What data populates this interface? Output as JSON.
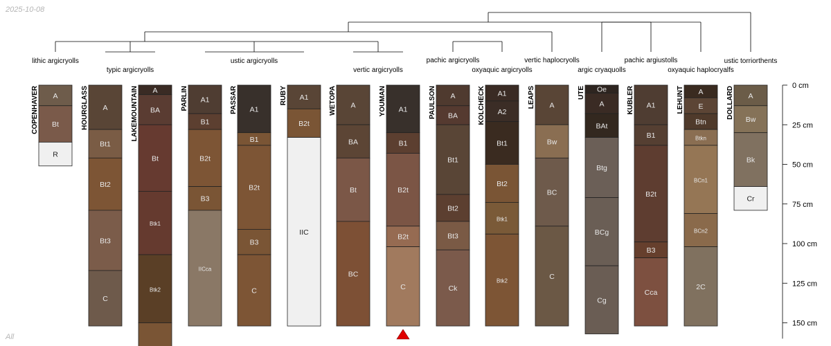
{
  "date": "2025-10-08",
  "footer": "All",
  "depth_axis": {
    "unit": "cm",
    "max": 160,
    "ticks": [
      {
        "value": 0,
        "label": "0 cm"
      },
      {
        "value": 25,
        "label": "25 cm"
      },
      {
        "value": 50,
        "label": "50 cm"
      },
      {
        "value": 75,
        "label": "75 cm"
      },
      {
        "value": 100,
        "label": "100 cm"
      },
      {
        "value": 125,
        "label": "125 cm"
      },
      {
        "value": 150,
        "label": "150 cm"
      }
    ]
  },
  "taxa": [
    {
      "label": "lithic argicryolls"
    },
    {
      "label": "typic argicryolls"
    },
    {
      "label": "ustic argicryolls"
    },
    {
      "label": "vertic argicryolls"
    },
    {
      "label": "pachic argicryolls"
    },
    {
      "label": "oxyaquic argicryolls"
    },
    {
      "label": "vertic haplocryolls"
    },
    {
      "label": "argic cryaquolls"
    },
    {
      "label": "pachic argiustolls"
    },
    {
      "label": "oxyaquic haplocryalfs"
    },
    {
      "label": "ustic torriorthents"
    }
  ],
  "profiles": [
    {
      "name": "COPENHAVER",
      "horizons": [
        {
          "name": "A",
          "top": 0,
          "bottom": 13,
          "color": "#6e5c4b"
        },
        {
          "name": "Bt",
          "top": 13,
          "bottom": 36,
          "color": "#7a5a4a"
        },
        {
          "name": "R",
          "top": 36,
          "bottom": 51,
          "color": "#f0f0f0"
        }
      ]
    },
    {
      "name": "HOURGLASS",
      "horizons": [
        {
          "name": "A",
          "top": 0,
          "bottom": 28,
          "color": "#594536"
        },
        {
          "name": "Bt1",
          "top": 28,
          "bottom": 46,
          "color": "#7a5c45"
        },
        {
          "name": "Bt2",
          "top": 46,
          "bottom": 79,
          "color": "#7d5535"
        },
        {
          "name": "Bt3",
          "top": 79,
          "bottom": 117,
          "color": "#7b5c4a"
        },
        {
          "name": "C",
          "top": 117,
          "bottom": 152,
          "color": "#6e5a4b"
        }
      ]
    },
    {
      "name": "LAKEMOUNTAIN",
      "horizons": [
        {
          "name": "A",
          "top": 0,
          "bottom": 6,
          "color": "#3a2b24"
        },
        {
          "name": "BA",
          "top": 6,
          "bottom": 25,
          "color": "#5a3c32"
        },
        {
          "name": "Bt",
          "top": 25,
          "bottom": 67,
          "color": "#663a30"
        },
        {
          "name": "Btk1",
          "top": 67,
          "bottom": 107,
          "color": "#653a2f"
        },
        {
          "name": "Btk2",
          "top": 107,
          "bottom": 150,
          "color": "#5a3f26"
        },
        {
          "name": "",
          "top": 150,
          "bottom": 165,
          "color": "#7a5535"
        }
      ]
    },
    {
      "name": "PARLIN",
      "horizons": [
        {
          "name": "A1",
          "top": 0,
          "bottom": 18,
          "color": "#4f3d32"
        },
        {
          "name": "B1",
          "top": 18,
          "bottom": 28,
          "color": "#5c3f30"
        },
        {
          "name": "B2t",
          "top": 28,
          "bottom": 64,
          "color": "#7d5535"
        },
        {
          "name": "B3",
          "top": 64,
          "bottom": 79,
          "color": "#7a5535"
        },
        {
          "name": "IICca",
          "top": 79,
          "bottom": 152,
          "color": "#8a7866"
        }
      ]
    },
    {
      "name": "PASSAR",
      "horizons": [
        {
          "name": "A1",
          "top": 0,
          "bottom": 30,
          "color": "#38302b"
        },
        {
          "name": "B1",
          "top": 30,
          "bottom": 38,
          "color": "#7a5535"
        },
        {
          "name": "B2t",
          "top": 38,
          "bottom": 91,
          "color": "#7d5535"
        },
        {
          "name": "B3",
          "top": 91,
          "bottom": 107,
          "color": "#7a5535"
        },
        {
          "name": "C",
          "top": 107,
          "bottom": 152,
          "color": "#7d5535"
        }
      ]
    },
    {
      "name": "RUBY",
      "horizons": [
        {
          "name": "A1",
          "top": 0,
          "bottom": 15,
          "color": "#594536"
        },
        {
          "name": "B2t",
          "top": 15,
          "bottom": 33,
          "color": "#7a5535"
        },
        {
          "name": "IIC",
          "top": 33,
          "bottom": 152,
          "color": "#f0f0f0"
        }
      ]
    },
    {
      "name": "WETOPA",
      "horizons": [
        {
          "name": "A",
          "top": 0,
          "bottom": 25,
          "color": "#594536"
        },
        {
          "name": "BA",
          "top": 25,
          "bottom": 46,
          "color": "#5c4535"
        },
        {
          "name": "Bt",
          "top": 46,
          "bottom": 86,
          "color": "#7b5747"
        },
        {
          "name": "BC",
          "top": 86,
          "bottom": 152,
          "color": "#7d5035"
        }
      ]
    },
    {
      "name": "YOUMAN",
      "horizons": [
        {
          "name": "A1",
          "top": 0,
          "bottom": 30,
          "color": "#38302b"
        },
        {
          "name": "B1",
          "top": 30,
          "bottom": 43,
          "color": "#5c3f30"
        },
        {
          "name": "B2t",
          "top": 43,
          "bottom": 89,
          "color": "#7b5545"
        },
        {
          "name": "B2t",
          "top": 89,
          "bottom": 102,
          "color": "#966b52"
        },
        {
          "name": "C",
          "top": 102,
          "bottom": 152,
          "color": "#a17a5e"
        }
      ]
    },
    {
      "name": "PAULSON",
      "horizons": [
        {
          "name": "A",
          "top": 0,
          "bottom": 13,
          "color": "#4f3a2f"
        },
        {
          "name": "BA",
          "top": 13,
          "bottom": 25,
          "color": "#553a30"
        },
        {
          "name": "Bt1",
          "top": 25,
          "bottom": 69,
          "color": "#594536"
        },
        {
          "name": "Bt2",
          "top": 69,
          "bottom": 86,
          "color": "#5c3f30"
        },
        {
          "name": "Bt3",
          "top": 86,
          "bottom": 104,
          "color": "#7a5a45"
        },
        {
          "name": "Ck",
          "top": 104,
          "bottom": 152,
          "color": "#7b5a4b"
        }
      ]
    },
    {
      "name": "KOLCHECK",
      "horizons": [
        {
          "name": "A1",
          "top": 0,
          "bottom": 10,
          "color": "#3a2b24"
        },
        {
          "name": "A2",
          "top": 10,
          "bottom": 23,
          "color": "#3b2d26"
        },
        {
          "name": "Bt1",
          "top": 23,
          "bottom": 50,
          "color": "#3a2b20"
        },
        {
          "name": "Bt2",
          "top": 50,
          "bottom": 74,
          "color": "#7a5535"
        },
        {
          "name": "Btk1",
          "top": 74,
          "bottom": 94,
          "color": "#7a5a38"
        },
        {
          "name": "Btk2",
          "top": 94,
          "bottom": 152,
          "color": "#7d5535"
        }
      ]
    },
    {
      "name": "LEAPS",
      "horizons": [
        {
          "name": "A",
          "top": 0,
          "bottom": 25,
          "color": "#594536"
        },
        {
          "name": "Bw",
          "top": 25,
          "bottom": 46,
          "color": "#8a6e52"
        },
        {
          "name": "BC",
          "top": 46,
          "bottom": 89,
          "color": "#6e5a4b"
        },
        {
          "name": "C",
          "top": 89,
          "bottom": 152,
          "color": "#6b5845"
        }
      ]
    },
    {
      "name": "UTE",
      "horizons": [
        {
          "name": "Oe",
          "top": 0,
          "bottom": 5,
          "color": "#2e2520"
        },
        {
          "name": "A",
          "top": 5,
          "bottom": 18,
          "color": "#3a2b24"
        },
        {
          "name": "BAt",
          "top": 18,
          "bottom": 33,
          "color": "#33281f"
        },
        {
          "name": "Btg",
          "top": 33,
          "bottom": 71,
          "color": "#6b5f57"
        },
        {
          "name": "BCg",
          "top": 71,
          "bottom": 114,
          "color": "#6a5e55"
        },
        {
          "name": "Cg",
          "top": 114,
          "bottom": 157,
          "color": "#6a5d54"
        }
      ]
    },
    {
      "name": "KUBLER",
      "horizons": [
        {
          "name": "A1",
          "top": 0,
          "bottom": 25,
          "color": "#4f3d32"
        },
        {
          "name": "B1",
          "top": 25,
          "bottom": 38,
          "color": "#553f32"
        },
        {
          "name": "B2t",
          "top": 38,
          "bottom": 99,
          "color": "#5e3d30"
        },
        {
          "name": "B3",
          "top": 99,
          "bottom": 109,
          "color": "#663f2d"
        },
        {
          "name": "Cca",
          "top": 109,
          "bottom": 152,
          "color": "#7d5040"
        }
      ]
    },
    {
      "name": "LEHUNT",
      "horizons": [
        {
          "name": "A",
          "top": 0,
          "bottom": 8,
          "color": "#3a2b20"
        },
        {
          "name": "E",
          "top": 8,
          "bottom": 18,
          "color": "#5c4535"
        },
        {
          "name": "Btn",
          "top": 18,
          "bottom": 28,
          "color": "#4f3a2b"
        },
        {
          "name": "Btkn",
          "top": 28,
          "bottom": 38,
          "color": "#8a6e52"
        },
        {
          "name": "BCn1",
          "top": 38,
          "bottom": 81,
          "color": "#957655"
        },
        {
          "name": "BCn2",
          "top": 81,
          "bottom": 102,
          "color": "#8a6a4b"
        },
        {
          "name": "2C",
          "top": 102,
          "bottom": 152,
          "color": "#80715f"
        }
      ]
    },
    {
      "name": "DOLLARD",
      "horizons": [
        {
          "name": "A",
          "top": 0,
          "bottom": 13,
          "color": "#6b5c48"
        },
        {
          "name": "Bw",
          "top": 13,
          "bottom": 30,
          "color": "#857258"
        },
        {
          "name": "Bk",
          "top": 30,
          "bottom": 64,
          "color": "#807160"
        },
        {
          "name": "Cr",
          "top": 64,
          "bottom": 79,
          "color": "#f0f0f0"
        }
      ]
    }
  ]
}
